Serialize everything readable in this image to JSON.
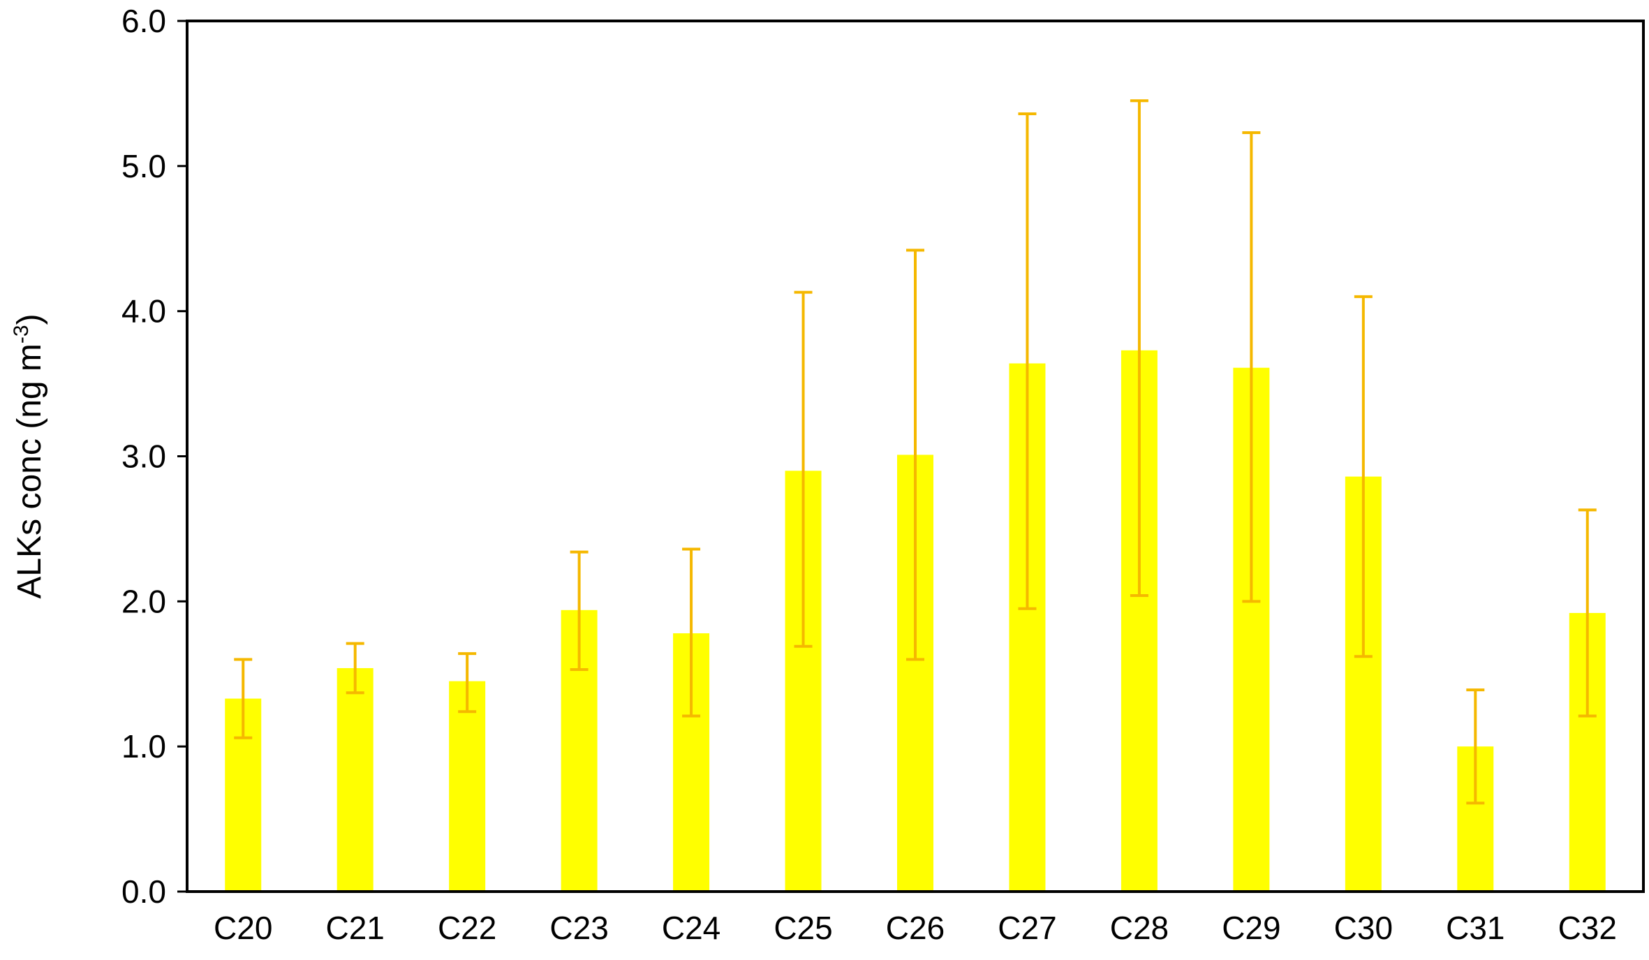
{
  "chart_data": {
    "type": "bar",
    "title": "",
    "xlabel": "",
    "ylabel": "ALKs conc (ng m",
    "ylabel_superscript": "-3",
    "ylabel_close": ")",
    "ylim": [
      0,
      6
    ],
    "yticks": [
      "0.0",
      "1.0",
      "2.0",
      "3.0",
      "4.0",
      "5.0",
      "6.0"
    ],
    "categories": [
      "C20",
      "C21",
      "C22",
      "C23",
      "C24",
      "C25",
      "C26",
      "C27",
      "C28",
      "C29",
      "C30",
      "C31",
      "C32"
    ],
    "values": [
      1.33,
      1.54,
      1.45,
      1.94,
      1.78,
      2.9,
      3.01,
      3.64,
      3.73,
      3.61,
      2.86,
      1.0,
      1.92
    ],
    "error_low": [
      1.06,
      1.37,
      1.24,
      1.53,
      1.21,
      1.69,
      1.6,
      1.95,
      2.04,
      2.0,
      1.62,
      0.61,
      1.21
    ],
    "error_high": [
      1.6,
      1.71,
      1.64,
      2.34,
      2.36,
      4.13,
      4.42,
      5.36,
      5.45,
      5.23,
      4.1,
      1.39,
      2.63
    ],
    "grid": false,
    "legend": "none",
    "bar_color": "#ffff00",
    "error_color": "#f5b800",
    "axis_color": "#000000"
  }
}
